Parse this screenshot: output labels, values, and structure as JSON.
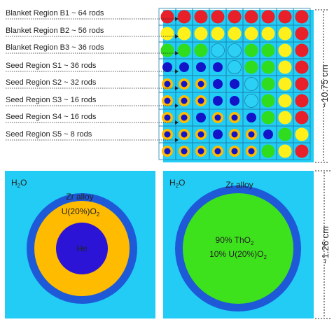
{
  "regions": [
    {
      "label": "Blanket Region B1 ~ 64 rods",
      "color": "#e8202a"
    },
    {
      "label": "Blanket Region B2 ~ 56 rods",
      "color": "#ffef1a"
    },
    {
      "label": "Blanket Region B3 ~ 36 rods",
      "color": "#2fdc1e"
    },
    {
      "label": "Seed Region S1 ~ 36 rods",
      "color": "#1313c8"
    },
    {
      "label": "Seed Region S2 ~ 32 rods",
      "color": "#1313c8"
    },
    {
      "label": "Seed Region S3 ~ 16 rods",
      "color": "#1313c8"
    },
    {
      "label": "Seed Region S4 ~ 16 rods",
      "color": "#1313c8"
    },
    {
      "label": "Seed Region S5 ~ 8 rods",
      "color": "#1313c8"
    }
  ],
  "assembly_dimension": "~10.75 cm",
  "cell_dimension": "~1.26 cm",
  "seed_cell": {
    "coolant": "H",
    "coolant_sub": "2",
    "coolant_tail": "O",
    "clad": "Zr alloy",
    "fuel_main": "U(20%)O",
    "fuel_sub": "2",
    "gap": "He"
  },
  "blanket_cell": {
    "coolant": "H",
    "coolant_sub": "2",
    "coolant_tail": "O",
    "clad": "Zr alloy",
    "fuel_line1_main": "90% ThO",
    "fuel_line1_sub": "2",
    "fuel_line2_main": "10% U(20%)O",
    "fuel_line2_sub": "2"
  },
  "colors": {
    "water": "#22ccf5",
    "grid_line": "#1e7fa8",
    "clad": "#1e5ad8",
    "seed_fuel": "#ffbb00",
    "gap": "#2b14d6",
    "blanket_fuel": "#3ee21c",
    "b1": "#e8202a",
    "b2": "#ffef1a",
    "b3": "#2fdc1e",
    "seed": "#1313c8",
    "light_cell": "#2bd0f4"
  }
}
